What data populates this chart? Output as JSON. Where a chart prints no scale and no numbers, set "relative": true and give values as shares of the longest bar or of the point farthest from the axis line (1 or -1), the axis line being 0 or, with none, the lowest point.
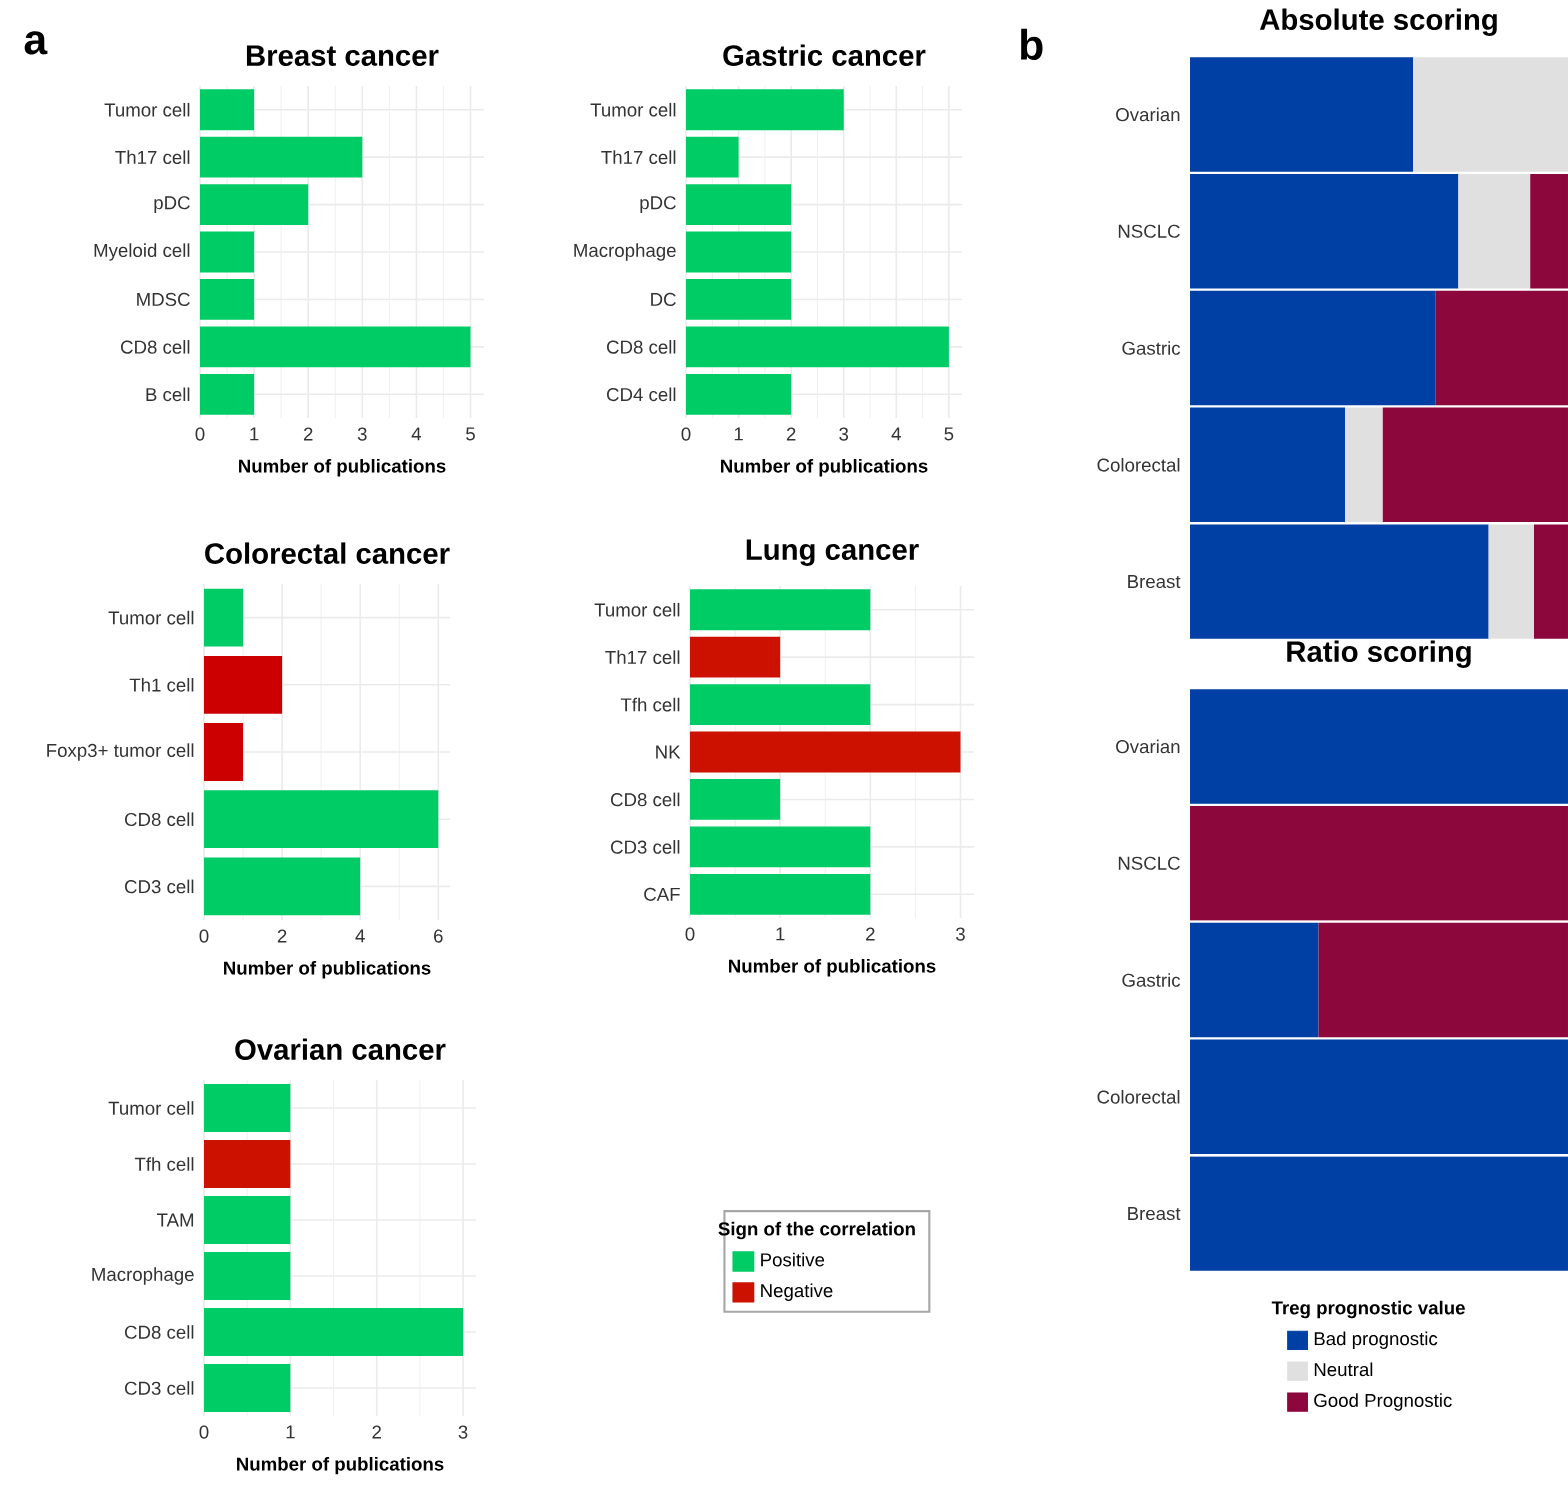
{
  "chart_data": [
    {
      "type": "bar",
      "orientation": "horizontal",
      "title": "Breast cancer",
      "xlabel": "Number of publications",
      "annotations": [
        "a"
      ],
      "categories": [
        "Tumor cell",
        "Th17 cell",
        "pDC",
        "Myeloid cell",
        "MDSC",
        "CD8 cell",
        "B cell"
      ],
      "values": [
        1,
        3,
        2,
        1,
        1,
        5,
        1
      ],
      "colors": [
        "#00cc66",
        "#00cc66",
        "#00cc66",
        "#00cc66",
        "#00cc66",
        "#00cc66",
        "#00cc66"
      ],
      "xlim": [
        0,
        5.25
      ],
      "xticks": [
        0,
        1,
        2,
        3,
        4,
        5
      ],
      "grid": true
    },
    {
      "type": "bar",
      "orientation": "horizontal",
      "title": "Gastric cancer",
      "xlabel": "Number of publications",
      "categories": [
        "Tumor cell",
        "Th17 cell",
        "pDC",
        "Macrophage",
        "DC",
        "CD8 cell",
        "CD4 cell"
      ],
      "values": [
        3,
        1,
        2,
        2,
        2,
        5,
        2
      ],
      "colors": [
        "#00cc66",
        "#00cc66",
        "#00cc66",
        "#00cc66",
        "#00cc66",
        "#00cc66",
        "#00cc66"
      ],
      "xlim": [
        0,
        5.25
      ],
      "xticks": [
        0,
        1,
        2,
        3,
        4,
        5
      ],
      "grid": true
    },
    {
      "type": "bar",
      "orientation": "horizontal",
      "title": "Colorectal cancer",
      "xlabel": "Number of publications",
      "categories": [
        "Tumor cell",
        "Th1 cell",
        "Foxp3+ tumor cell",
        "CD8 cell",
        "CD3 cell"
      ],
      "values": [
        1,
        2,
        1,
        6,
        4
      ],
      "colors": [
        "#00cc66",
        "#cc0000",
        "#cc0000",
        "#00cc66",
        "#00cc66"
      ],
      "xlim": [
        0,
        6.3
      ],
      "xticks": [
        0,
        2,
        4,
        6
      ],
      "grid": true
    },
    {
      "type": "bar",
      "orientation": "horizontal",
      "title": "Lung cancer",
      "xlabel": "Number of publications",
      "categories": [
        "Tumor cell",
        "Th17 cell",
        "Tfh cell",
        "NK",
        "CD8 cell",
        "CD3 cell",
        "CAF"
      ],
      "values": [
        2,
        1,
        2,
        3,
        1,
        2,
        2
      ],
      "colors": [
        "#00cc66",
        "#cc1100",
        "#00cc66",
        "#cc1100",
        "#00cc66",
        "#00cc66",
        "#00cc66"
      ],
      "xlim": [
        0,
        3.15
      ],
      "xticks": [
        0,
        1,
        2,
        3
      ],
      "grid": true
    },
    {
      "type": "bar",
      "orientation": "horizontal",
      "title": "Ovarian cancer",
      "xlabel": "Number of publications",
      "categories": [
        "Tumor cell",
        "Tfh cell",
        "TAM",
        "Macrophage",
        "CD8 cell",
        "CD3 cell"
      ],
      "series": [
        {
          "name": "Positive",
          "color": "#00cc66",
          "values": [
            1,
            null,
            1,
            1,
            3,
            1
          ]
        },
        {
          "name": "Negative",
          "color": "#cc1100",
          "values": [
            null,
            1,
            null,
            null,
            null,
            null
          ]
        }
      ],
      "legend": "right",
      "legend_title": "Sign of the correlation",
      "xlim": [
        0,
        3.15
      ],
      "xticks": [
        0,
        1,
        2,
        3
      ],
      "grid": true
    },
    {
      "type": "bar",
      "orientation": "horizontal",
      "stacked": true,
      "relative": true,
      "title": "Absolute scoring",
      "annotations": [
        "b"
      ],
      "tick_labels": "y",
      "categories": [
        "Ovarian",
        "NSCLC",
        "Gastric",
        "Colorectal",
        "Breast"
      ],
      "series": [
        {
          "color": "#003fa3",
          "values": [
            0.59,
            0.71,
            0.65,
            0.41,
            0.79
          ]
        },
        {
          "color": "#e0e0e0",
          "values": [
            0.41,
            0.19,
            null,
            0.1,
            0.12
          ]
        },
        {
          "color": "#8c073c",
          "values": [
            null,
            0.1,
            0.35,
            0.49,
            0.09
          ]
        }
      ]
    },
    {
      "type": "bar",
      "orientation": "horizontal",
      "stacked": true,
      "relative": true,
      "title": "Ratio scoring",
      "tick_labels": "y",
      "legend": "bottom",
      "legend_title": "Treg prognostic value",
      "categories": [
        "Ovarian",
        "NSCLC",
        "Gastric",
        "Colorectal",
        "Breast"
      ],
      "series": [
        {
          "name": "Bad prognostic",
          "color": "#003fa3",
          "values": [
            1,
            null,
            0.34,
            1,
            1
          ]
        },
        {
          "name": "Neutral",
          "color": "#e0e0e0",
          "values": [
            null,
            null,
            null,
            null,
            null
          ]
        },
        {
          "name": "Good Prognostic",
          "color": "#8c073c",
          "values": [
            null,
            1,
            0.66,
            null,
            null
          ]
        }
      ]
    }
  ]
}
